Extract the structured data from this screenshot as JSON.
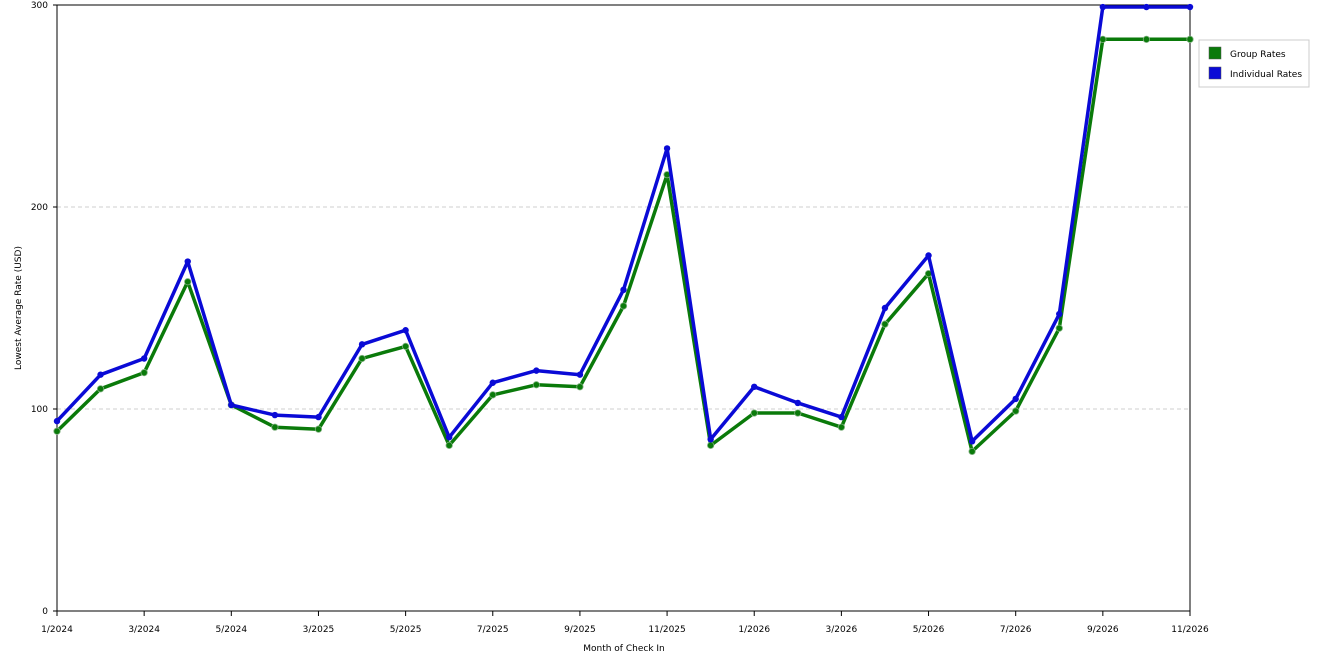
{
  "chart_data": {
    "type": "line",
    "title": "",
    "xlabel": "Month of Check In",
    "ylabel": "Lowest Average Rate (USD)",
    "ylim": [
      0,
      300
    ],
    "yticks": [
      "0",
      "100",
      "200",
      "300"
    ],
    "grid": "horizontal-dashed",
    "legend_placement": "right",
    "xtick_labels": [
      {
        "index": 0,
        "label": "1/2024"
      },
      {
        "index": 2,
        "label": "3/2024"
      },
      {
        "index": 4,
        "label": "5/2024"
      },
      {
        "index": 6,
        "label": "3/2025"
      },
      {
        "index": 8,
        "label": "5/2025"
      },
      {
        "index": 10,
        "label": "7/2025"
      },
      {
        "index": 12,
        "label": "9/2025"
      },
      {
        "index": 14,
        "label": "11/2025"
      },
      {
        "index": 16,
        "label": "1/2026"
      },
      {
        "index": 18,
        "label": "3/2026"
      },
      {
        "index": 20,
        "label": "5/2026"
      },
      {
        "index": 22,
        "label": "7/2026"
      },
      {
        "index": 24,
        "label": "9/2026"
      },
      {
        "index": 26,
        "label": "11/2026"
      }
    ],
    "series": [
      {
        "name": "Group Rates",
        "color": "#0a7a0a",
        "values": [
          89,
          110,
          118,
          163,
          102,
          91,
          90,
          125,
          131,
          82,
          107,
          112,
          111,
          151,
          216,
          82,
          98,
          98,
          91,
          142,
          167,
          79,
          99,
          140,
          283,
          283,
          283
        ]
      },
      {
        "name": "Individual Rates",
        "color": "#0a0ad6",
        "values": [
          94,
          117,
          125,
          173,
          102,
          97,
          96,
          132,
          139,
          86,
          113,
          119,
          117,
          159,
          229,
          85,
          111,
          103,
          96,
          150,
          176,
          84,
          105,
          147,
          299,
          299,
          299
        ]
      }
    ]
  }
}
